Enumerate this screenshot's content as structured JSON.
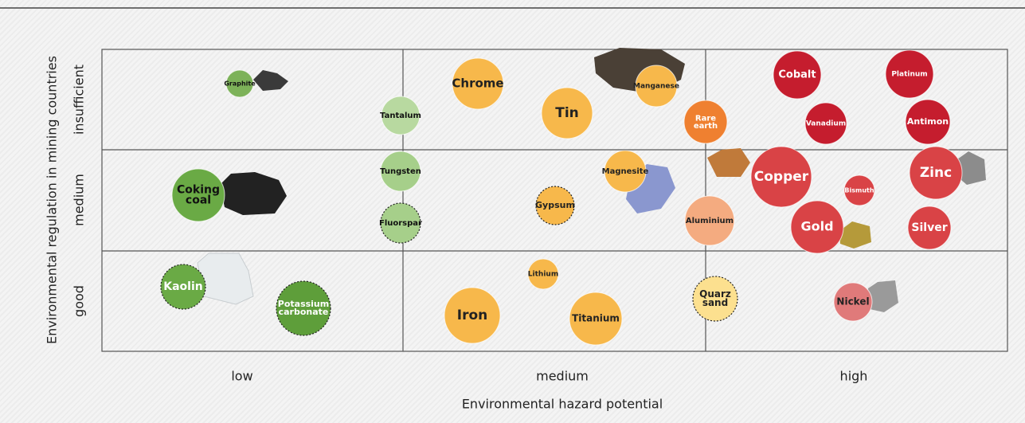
{
  "x_axis": {
    "title": "Environmental hazard potential",
    "categories": [
      "low",
      "medium",
      "high"
    ]
  },
  "y_axis": {
    "title": "Environmental regulation in mining countries",
    "categories": [
      "insufficient",
      "medium",
      "good"
    ]
  },
  "nodes": [
    {
      "lines": [
        "Graphite"
      ]
    },
    {
      "lines": [
        "Tantalum"
      ]
    },
    {
      "lines": [
        "Tungsten"
      ]
    },
    {
      "lines": [
        "Fluorspar"
      ]
    },
    {
      "lines": [
        "Coking",
        "coal"
      ]
    },
    {
      "lines": [
        "Kaolin"
      ]
    },
    {
      "lines": [
        "Potassium",
        "carbonate"
      ]
    },
    {
      "lines": [
        "Chrome"
      ]
    },
    {
      "lines": [
        "Tin"
      ]
    },
    {
      "lines": [
        "Manganese"
      ]
    },
    {
      "lines": [
        "Rare",
        "earth"
      ]
    },
    {
      "lines": [
        "Magnesite"
      ]
    },
    {
      "lines": [
        "Gypsum"
      ]
    },
    {
      "lines": [
        "Aluminium"
      ]
    },
    {
      "lines": [
        "Lithium"
      ]
    },
    {
      "lines": [
        "Iron"
      ]
    },
    {
      "lines": [
        "Titanium"
      ]
    },
    {
      "lines": [
        "Quarz",
        "sand"
      ]
    },
    {
      "lines": [
        "Cobalt"
      ]
    },
    {
      "lines": [
        "Platinum"
      ]
    },
    {
      "lines": [
        "Vanadium"
      ]
    },
    {
      "lines": [
        "Antimon"
      ]
    },
    {
      "lines": [
        "Copper"
      ]
    },
    {
      "lines": [
        "Bismuth"
      ]
    },
    {
      "lines": [
        "Zinc"
      ]
    },
    {
      "lines": [
        "Gold"
      ]
    },
    {
      "lines": [
        "Silver"
      ]
    },
    {
      "lines": [
        "Nickel"
      ]
    }
  ]
}
